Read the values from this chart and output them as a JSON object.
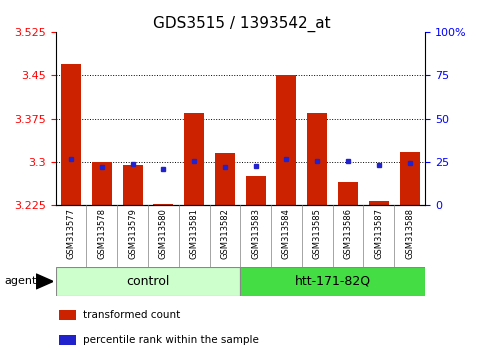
{
  "title": "GDS3515 / 1393542_at",
  "samples": [
    "GSM313577",
    "GSM313578",
    "GSM313579",
    "GSM313580",
    "GSM313581",
    "GSM313582",
    "GSM313583",
    "GSM313584",
    "GSM313585",
    "GSM313586",
    "GSM313587",
    "GSM313588"
  ],
  "red_values": [
    3.47,
    3.3,
    3.295,
    3.228,
    3.385,
    3.315,
    3.275,
    3.45,
    3.385,
    3.265,
    3.232,
    3.318
  ],
  "blue_values": [
    3.305,
    3.292,
    3.296,
    3.288,
    3.302,
    3.292,
    3.293,
    3.305,
    3.302,
    3.302,
    3.295,
    3.298
  ],
  "ymin": 3.225,
  "ymax": 3.525,
  "yticks_left": [
    3.225,
    3.3,
    3.375,
    3.45,
    3.525
  ],
  "yticks_right": [
    0,
    25,
    50,
    75,
    100
  ],
  "bar_bottom": 3.225,
  "red_color": "#cc2200",
  "blue_color": "#2222cc",
  "group1_label": "control",
  "group2_label": "htt-171-82Q",
  "group1_indices": [
    0,
    1,
    2,
    3,
    4,
    5
  ],
  "group2_indices": [
    6,
    7,
    8,
    9,
    10,
    11
  ],
  "agent_label": "agent",
  "legend_red": "transformed count",
  "legend_blue": "percentile rank within the sample",
  "group1_color": "#ccffcc",
  "group2_color": "#44dd44",
  "tick_bg": "#cccccc",
  "bar_width": 0.65,
  "grid_yticks": [
    3.3,
    3.375,
    3.45
  ],
  "grid_color": "black",
  "left_color": "red",
  "right_color": "blue"
}
